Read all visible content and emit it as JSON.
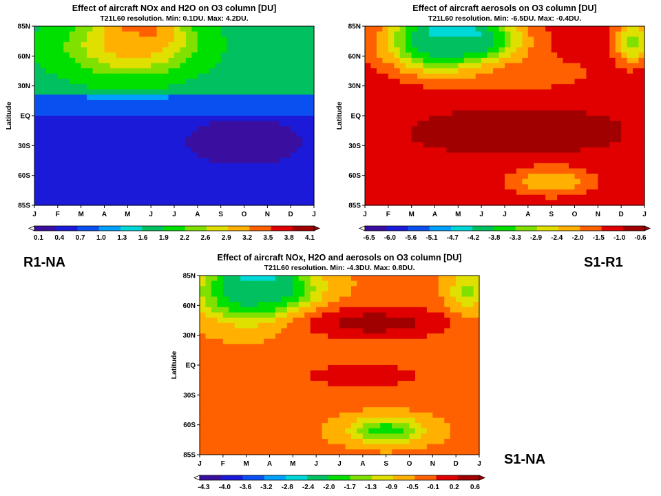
{
  "panel_labels": {
    "left": "R1-NA",
    "right": "S1-R1",
    "bottom": "S1-NA"
  },
  "chart_data": [
    {
      "type": "heatmap",
      "title": "Effect of aircraft NOx and H2O on O3 column [DU]",
      "subtitle": "T21L60 resolution.  Min: 0.1DU. Max: 4.2DU.",
      "ylabel": "Latitude",
      "x_ticks": [
        "J",
        "F",
        "M",
        "A",
        "M",
        "J",
        "J",
        "A",
        "S",
        "O",
        "N",
        "D",
        "J"
      ],
      "y_ticks": [
        "85N",
        "60N",
        "30N",
        "EQ",
        "30S",
        "60S",
        "85S"
      ],
      "colorbar_ticks": [
        "0.1",
        "0.4",
        "0.7",
        "1.0",
        "1.3",
        "1.6",
        "1.9",
        "2.2",
        "2.6",
        "2.9",
        "3.2",
        "3.5",
        "3.8",
        "4.1"
      ],
      "min": 0.1,
      "max": 4.2,
      "palette": [
        "#3a0fa0",
        "#1a1ad8",
        "#0a50f0",
        "#00a0ff",
        "#00d8d8",
        "#00c060",
        "#00e000",
        "#80e000",
        "#e0e000",
        "#ffb000",
        "#ff6000",
        "#e00000",
        "#a00000"
      ],
      "features": [
        {
          "kind": "band",
          "lat_from": 85,
          "lat_to": 20,
          "value": 1.9
        },
        {
          "kind": "band",
          "lat_from": 20,
          "lat_to": 0,
          "value": 1.0
        },
        {
          "kind": "band",
          "lat_from": 0,
          "lat_to": -85,
          "value": 0.5
        },
        {
          "kind": "blob",
          "month": 4.5,
          "lat": 78,
          "dm": 1.6,
          "dl": 22,
          "value": 4.1
        },
        {
          "kind": "blob",
          "month": 4.0,
          "lat": 65,
          "dm": 2.6,
          "dl": 26,
          "value": 3.0
        },
        {
          "kind": "blob",
          "month": 9.0,
          "lat": -25,
          "dm": 2.2,
          "dl": 20,
          "value": 0.2
        }
      ]
    },
    {
      "type": "heatmap",
      "title": "Effect of aircraft aerosols on O3 column [DU]",
      "subtitle": "T21L60 resolution.  Min: -6.5DU. Max: -0.4DU.",
      "ylabel": "Latitude",
      "x_ticks": [
        "J",
        "F",
        "M",
        "A",
        "M",
        "J",
        "J",
        "A",
        "S",
        "O",
        "N",
        "D",
        "J"
      ],
      "y_ticks": [
        "85N",
        "60N",
        "30N",
        "EQ",
        "30S",
        "60S",
        "85S"
      ],
      "colorbar_ticks": [
        "-6.5",
        "-6.0",
        "-5.6",
        "-5.1",
        "-4.7",
        "-4.2",
        "-3.8",
        "-3.3",
        "-2.9",
        "-2.4",
        "-2.0",
        "-1.5",
        "-1.0",
        "-0.6"
      ],
      "min": -6.5,
      "max": -0.4,
      "palette": [
        "#3a0fa0",
        "#1a1ad8",
        "#0a50f0",
        "#00a0ff",
        "#00d8d8",
        "#00c060",
        "#00e000",
        "#80e000",
        "#e0e000",
        "#ffb000",
        "#ff6000",
        "#e00000",
        "#a00000"
      ],
      "features": [
        {
          "kind": "band",
          "lat_from": 85,
          "lat_to": -85,
          "value": -1.0
        },
        {
          "kind": "blob",
          "month": 3.8,
          "lat": 75,
          "dm": 1.8,
          "dl": 22,
          "value": -6.5
        },
        {
          "kind": "blob",
          "month": 3.8,
          "lat": 68,
          "dm": 2.8,
          "dl": 28,
          "value": -4.0
        },
        {
          "kind": "blob",
          "month": 11.5,
          "lat": 70,
          "dm": 0.8,
          "dl": 20,
          "value": -3.0
        },
        {
          "kind": "blob",
          "month": 6.5,
          "lat": -15,
          "dm": 4,
          "dl": 20,
          "value": -0.5
        },
        {
          "kind": "blob",
          "month": 8.0,
          "lat": -62,
          "dm": 1.8,
          "dl": 14,
          "value": -2.2
        },
        {
          "kind": "blob",
          "month": 7.0,
          "lat": 40,
          "dm": 3,
          "dl": 15,
          "value": -1.7
        }
      ]
    },
    {
      "type": "heatmap",
      "title": "Effect of aircraft NOx, H2O and aerosols on O3 column [DU]",
      "subtitle": "T21L60 resolution.  Min: -4.3DU. Max: 0.8DU.",
      "ylabel": "Latitude",
      "x_ticks": [
        "J",
        "F",
        "M",
        "A",
        "M",
        "J",
        "J",
        "A",
        "S",
        "O",
        "N",
        "D",
        "J"
      ],
      "y_ticks": [
        "85N",
        "60N",
        "30N",
        "EQ",
        "30S",
        "60S",
        "85S"
      ],
      "colorbar_ticks": [
        "-4.3",
        "-4.0",
        "-3.6",
        "-3.2",
        "-2.8",
        "-2.4",
        "-2.0",
        "-1.7",
        "-1.3",
        "-0.9",
        "-0.5",
        "-0.1",
        "0.2",
        "0.6"
      ],
      "min": -4.3,
      "max": 0.8,
      "palette": [
        "#3a0fa0",
        "#1a1ad8",
        "#0a50f0",
        "#00a0ff",
        "#00d8d8",
        "#00c060",
        "#00e000",
        "#80e000",
        "#e0e000",
        "#ffb000",
        "#ff6000",
        "#e00000",
        "#a00000"
      ],
      "features": [
        {
          "kind": "band",
          "lat_from": 85,
          "lat_to": -85,
          "value": -0.3
        },
        {
          "kind": "blob",
          "month": 2.5,
          "lat": 75,
          "dm": 1.6,
          "dl": 22,
          "value": -4.3
        },
        {
          "kind": "blob",
          "month": 2.5,
          "lat": 68,
          "dm": 2.4,
          "dl": 28,
          "value": -2.0
        },
        {
          "kind": "blob",
          "month": 7.5,
          "lat": 40,
          "dm": 3.5,
          "dl": 16,
          "value": 0.6
        },
        {
          "kind": "blob",
          "month": 7.0,
          "lat": -10,
          "dm": 2.5,
          "dl": 12,
          "value": 0.4
        },
        {
          "kind": "blob",
          "month": 8.0,
          "lat": -62,
          "dm": 1.6,
          "dl": 12,
          "value": -1.8
        },
        {
          "kind": "blob",
          "month": 11.5,
          "lat": 70,
          "dm": 0.8,
          "dl": 20,
          "value": -1.2
        }
      ]
    }
  ]
}
